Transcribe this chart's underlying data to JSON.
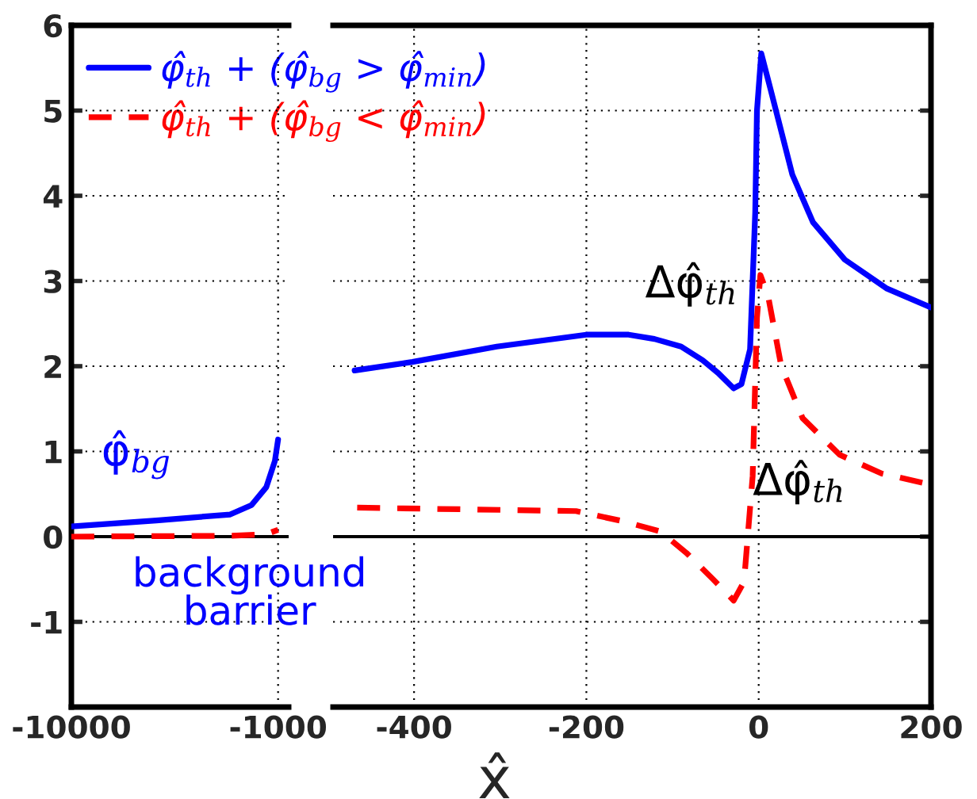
{
  "chart_data": [
    {
      "type": "line",
      "xlim": [
        -10000,
        -540
      ],
      "xticks": [
        -10000,
        -1000
      ],
      "ylim": [
        -2,
        6
      ],
      "yticks": [
        -1,
        0,
        1,
        2,
        3,
        4,
        5,
        6
      ],
      "grid": true,
      "line_style": "solid",
      "series": [
        {
          "color": "#0000ff",
          "x": [
            -10000,
            -6300,
            -3085,
            -2158,
            -1514,
            -1138,
            -1000
          ],
          "values": [
            0.12,
            0.19,
            0.26,
            0.37,
            0.58,
            0.89,
            1.14
          ]
        },
        {
          "color": "#ff0000",
          "line_style": "dashed",
          "x": [
            -10000,
            -3000,
            -1500,
            -1000
          ],
          "values": [
            0.0,
            0.01,
            0.03,
            0.08
          ]
        }
      ],
      "ref_lines": [
        {
          "axis": "y",
          "value": 0,
          "color": "#000000"
        }
      ],
      "annotations": [
        "φ̂$_{bg}$",
        "background\nbarrier"
      ]
    },
    {
      "type": "line",
      "xlim": [
        -494,
        200
      ],
      "xticks": [
        -400,
        -200,
        0,
        200
      ],
      "ylim": [
        -2,
        6
      ],
      "yticks": [
        -1,
        0,
        1,
        2,
        3,
        4,
        5,
        6
      ],
      "grid": true,
      "tick_labels": "x",
      "xlabel": "x̂",
      "line_style": "solid",
      "legend": "top left",
      "series": [
        {
          "name": "φ̂$_{th}$ + (φ̂$_{bg}$ > φ̂$_{min}$)",
          "color": "#0000ff",
          "x": [
            -469,
            -402,
            -304,
            -200,
            -151,
            -121,
            -90,
            -65,
            -47,
            -29,
            -20,
            -10,
            -4,
            -2,
            3,
            14,
            39,
            63,
            100,
            149,
            200
          ],
          "values": [
            1.95,
            2.05,
            2.23,
            2.37,
            2.37,
            2.32,
            2.23,
            2.07,
            1.92,
            1.74,
            1.79,
            2.2,
            3.81,
            5.0,
            5.67,
            5.24,
            4.25,
            3.69,
            3.25,
            2.91,
            2.69
          ]
        },
        {
          "name": "φ̂$_{th}$ + (φ̂$_{bg}$ < φ̂$_{min}$)",
          "color": "#ff0000",
          "line_style": "dashed",
          "x": [
            -466,
            -212,
            -157,
            -114,
            -84,
            -53,
            -29,
            -17,
            -7,
            -2,
            2,
            11,
            26,
            51,
            94,
            143,
            200
          ],
          "values": [
            0.34,
            0.3,
            0.18,
            0.06,
            -0.19,
            -0.5,
            -0.75,
            -0.53,
            0.71,
            2.57,
            3.07,
            2.82,
            2.01,
            1.39,
            0.96,
            0.74,
            0.61
          ]
        }
      ],
      "ref_lines": [
        {
          "axis": "y",
          "value": 0,
          "color": "#000000"
        }
      ],
      "annotations": [
        "Δφ̂$_{th}$",
        "Δφ̂$_{th}$"
      ]
    }
  ]
}
